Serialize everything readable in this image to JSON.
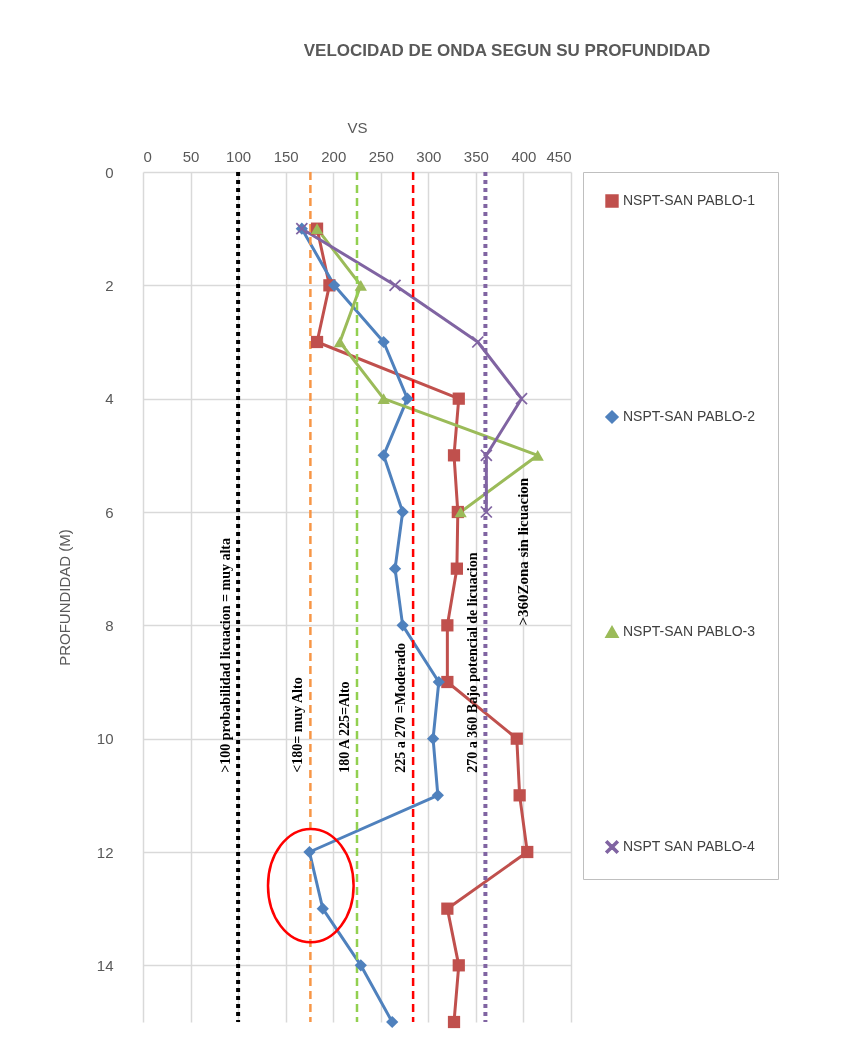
{
  "chart_data": {
    "type": "line",
    "title": "VELOCIDAD DE ONDA SEGUN SU PROFUNDIDAD",
    "xlabel": "VS",
    "ylabel": "PROFUNDIDAD (M)",
    "xlim": [
      0,
      450
    ],
    "xticks": [
      0,
      50,
      100,
      150,
      200,
      250,
      300,
      350,
      400,
      450
    ],
    "ylim": [
      15,
      0
    ],
    "yticks": [
      0,
      2,
      4,
      6,
      8,
      10,
      12,
      14
    ],
    "grid": true,
    "legend": "right",
    "series": [
      {
        "name": "NSPT-SAN PABLO-1",
        "color": "#c0504d",
        "marker": "square",
        "x": [
          183,
          196,
          183,
          332,
          327,
          331,
          330,
          320,
          320,
          393,
          396,
          404,
          320,
          332,
          327
        ],
        "values": [
          1,
          2,
          3,
          4,
          5,
          6,
          7,
          8,
          9,
          10,
          11,
          12,
          13,
          14,
          15
        ]
      },
      {
        "name": "NSPT-SAN PABLO-2",
        "color": "#4f81bd",
        "marker": "diamond",
        "x": [
          167,
          201,
          253,
          278,
          253,
          273,
          265,
          273,
          311,
          305,
          310,
          175,
          189,
          229,
          262
        ],
        "values": [
          1,
          2,
          3,
          4,
          5,
          6,
          7,
          8,
          9,
          10,
          11,
          12,
          13,
          14,
          15
        ]
      },
      {
        "name": "NSPT-SAN PABLO-3",
        "color": "#9bbb59",
        "marker": "triangle",
        "x": [
          183,
          229,
          207,
          253,
          415,
          334
        ],
        "values": [
          1,
          2,
          3,
          4,
          5,
          6
        ]
      },
      {
        "name": "NSPT SAN PABLO-4",
        "color": "#8064a2",
        "marker": "cross",
        "x": [
          167,
          265,
          352,
          398,
          361,
          361
        ],
        "values": [
          1,
          2,
          3,
          4,
          5,
          6
        ]
      }
    ],
    "ref_lines": [
      {
        "axis": "x",
        "value": 100,
        "label": ">100 probabilidad licuacion =  muy alta",
        "color": "#000000",
        "line_style": "dotted"
      },
      {
        "axis": "x",
        "value": 176,
        "label": "<180=  muy Alto",
        "color": "#f79646",
        "line_style": "dashed"
      },
      {
        "axis": "x",
        "value": 225,
        "label": "180 A 225=Alto",
        "color": "#92d050",
        "line_style": "dashed"
      },
      {
        "axis": "x",
        "value": 284,
        "label": "225 a 270 =Moderado",
        "color": "#ff0000",
        "line_style": "dashed"
      },
      {
        "axis": "x",
        "value": 360,
        "label": "270 a 360 Bajo potencial de licuacion",
        "color": "#8064a2",
        "line_style": "dotted"
      }
    ],
    "annotations": [
      ">360Zona sin licuacion"
    ]
  }
}
